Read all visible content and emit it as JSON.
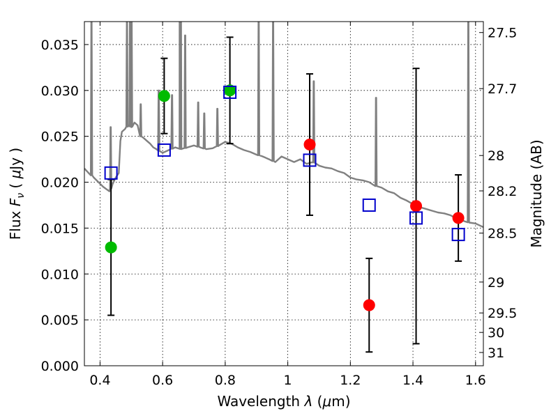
{
  "chart_data": {
    "type": "scatter",
    "xlabel": "Wavelength  λ (μm)",
    "ylabel": "Flux  Fν  ( μJy )",
    "y2label": "Magnitude (AB)",
    "xlim": [
      0.35,
      1.625
    ],
    "ylim": [
      0.0,
      0.0375
    ],
    "x_ticks": [
      0.4,
      0.6,
      0.8,
      1.0,
      1.2,
      1.4,
      1.6
    ],
    "x_tick_labels": [
      "0.4",
      "0.6",
      "0.8",
      "1",
      "1.2",
      "1.4",
      "1.6"
    ],
    "y_ticks": [
      0.0,
      0.005,
      0.01,
      0.015,
      0.02,
      0.025,
      0.03,
      0.035
    ],
    "y_tick_labels": [
      "0.000",
      "0.005",
      "0.010",
      "0.015",
      "0.020",
      "0.025",
      "0.030",
      "0.035"
    ],
    "y2_ticks": [
      27.5,
      27.7,
      28,
      28.2,
      28.5,
      29,
      29.5,
      30,
      31
    ],
    "y2_tick_labels": [
      "27.5",
      "27.7",
      "28",
      "28.2",
      "28.5",
      "29",
      "29.5",
      "30",
      "31"
    ],
    "grid": true,
    "colors": {
      "model": "#808080",
      "green": "#00bb00",
      "red": "#ff0000",
      "model_points": "#0000cc",
      "error_bars": "#000000"
    },
    "model_spectrum": {
      "x": [
        0.35,
        0.38,
        0.41,
        0.43,
        0.44,
        0.45,
        0.46,
        0.465,
        0.47,
        0.48,
        0.49,
        0.5,
        0.51,
        0.52,
        0.53,
        0.54,
        0.55,
        0.56,
        0.57,
        0.58,
        0.59,
        0.6,
        0.62,
        0.64,
        0.66,
        0.68,
        0.7,
        0.72,
        0.74,
        0.76,
        0.78,
        0.8,
        0.82,
        0.84,
        0.86,
        0.88,
        0.9,
        0.92,
        0.94,
        0.96,
        0.98,
        1.0,
        1.02,
        1.04,
        1.06,
        1.08,
        1.1,
        1.12,
        1.14,
        1.16,
        1.18,
        1.2,
        1.22,
        1.24,
        1.26,
        1.28,
        1.3,
        1.32,
        1.34,
        1.36,
        1.38,
        1.4,
        1.42,
        1.44,
        1.46,
        1.48,
        1.5,
        1.52,
        1.54,
        1.56,
        1.58,
        1.6,
        1.625
      ],
      "y": [
        0.0215,
        0.0205,
        0.0195,
        0.019,
        0.0198,
        0.0205,
        0.021,
        0.0245,
        0.0255,
        0.0258,
        0.0262,
        0.026,
        0.0265,
        0.0262,
        0.025,
        0.0248,
        0.0245,
        0.0242,
        0.0238,
        0.0236,
        0.0234,
        0.0232,
        0.0235,
        0.0238,
        0.0236,
        0.0238,
        0.024,
        0.0238,
        0.0236,
        0.0237,
        0.024,
        0.0244,
        0.0242,
        0.0238,
        0.0235,
        0.0233,
        0.023,
        0.0228,
        0.0225,
        0.0222,
        0.0228,
        0.0225,
        0.0222,
        0.0225,
        0.022,
        0.0222,
        0.0218,
        0.0216,
        0.0215,
        0.0212,
        0.021,
        0.0205,
        0.0203,
        0.0202,
        0.02,
        0.0196,
        0.0194,
        0.019,
        0.0188,
        0.0183,
        0.018,
        0.0176,
        0.0173,
        0.0171,
        0.0169,
        0.0167,
        0.0166,
        0.0164,
        0.016,
        0.0158,
        0.0156,
        0.0155,
        0.0151
      ],
      "emission_lines": [
        {
          "x": 0.3727,
          "peak": 0.0375
        },
        {
          "x": 0.434,
          "peak": 0.026
        },
        {
          "x": 0.4861,
          "peak": 0.0375
        },
        {
          "x": 0.4959,
          "peak": 0.0375
        },
        {
          "x": 0.5007,
          "peak": 0.0375
        },
        {
          "x": 0.53,
          "peak": 0.0285
        },
        {
          "x": 0.5876,
          "peak": 0.03
        },
        {
          "x": 0.63,
          "peak": 0.0295
        },
        {
          "x": 0.6548,
          "peak": 0.0375
        },
        {
          "x": 0.6563,
          "peak": 0.0375
        },
        {
          "x": 0.6584,
          "peak": 0.0375
        },
        {
          "x": 0.672,
          "peak": 0.036
        },
        {
          "x": 0.7136,
          "peak": 0.0287
        },
        {
          "x": 0.733,
          "peak": 0.0275
        },
        {
          "x": 0.775,
          "peak": 0.028
        },
        {
          "x": 0.9069,
          "peak": 0.0375
        },
        {
          "x": 0.9531,
          "peak": 0.0375
        },
        {
          "x": 1.083,
          "peak": 0.031
        },
        {
          "x": 1.282,
          "peak": 0.0292
        },
        {
          "x": 1.577,
          "peak": 0.0375
        }
      ]
    },
    "series": [
      {
        "marker": "circle",
        "color": "green",
        "points": [
          {
            "x": 0.435,
            "y": 0.0129,
            "err": 0.0074
          },
          {
            "x": 0.605,
            "y": 0.0294,
            "err": 0.0041
          },
          {
            "x": 0.815,
            "y": 0.03,
            "err": 0.0058
          }
        ]
      },
      {
        "marker": "circle",
        "color": "red",
        "points": [
          {
            "x": 1.07,
            "y": 0.0241,
            "err": 0.0077
          },
          {
            "x": 1.26,
            "y": 0.0066,
            "err": 0.0051
          },
          {
            "x": 1.41,
            "y": 0.0174,
            "err": 0.015
          },
          {
            "x": 1.545,
            "y": 0.0161,
            "err": 0.0047
          }
        ]
      },
      {
        "marker": "square",
        "color": "model_points",
        "points": [
          {
            "x": 0.435,
            "y": 0.021
          },
          {
            "x": 0.605,
            "y": 0.0235
          },
          {
            "x": 0.815,
            "y": 0.0298
          },
          {
            "x": 1.07,
            "y": 0.0224
          },
          {
            "x": 1.26,
            "y": 0.0175
          },
          {
            "x": 1.41,
            "y": 0.0161
          },
          {
            "x": 1.545,
            "y": 0.0143
          }
        ]
      }
    ]
  }
}
